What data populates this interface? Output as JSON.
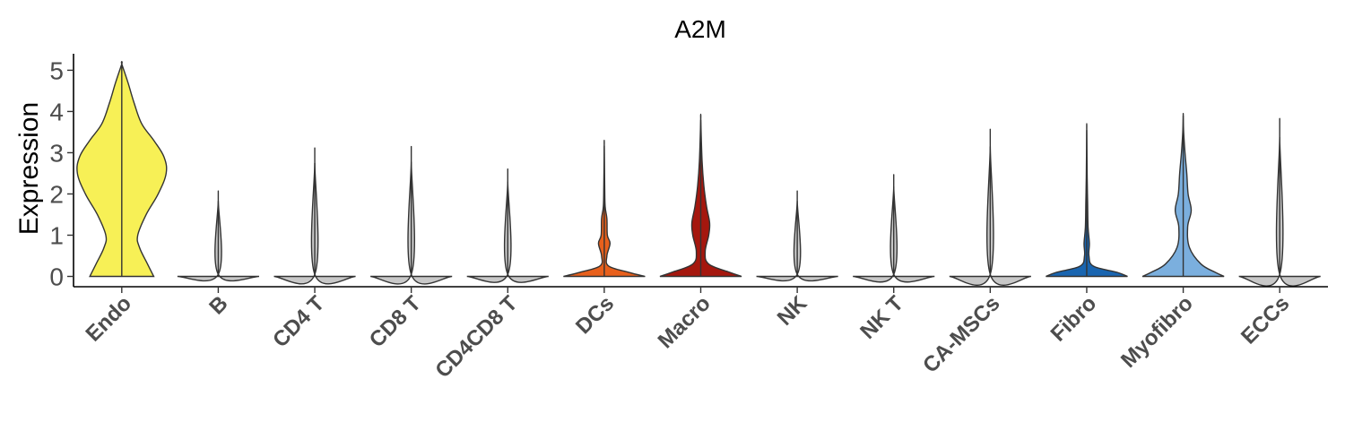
{
  "chart_data": {
    "type": "violin",
    "title": "A2M",
    "xlabel": "",
    "ylabel": "Expression",
    "ylim": [
      -0.25,
      5.4
    ],
    "yticks": [
      0,
      1,
      2,
      3,
      4,
      5
    ],
    "categories": [
      "Endo",
      "B",
      "CD4 T",
      "CD8 T",
      "CD4CD8 T",
      "DCs",
      "Macro",
      "NK",
      "NK T",
      "CA-MSCs",
      "Fibro",
      "Myofibro",
      "ECCs"
    ],
    "colors": [
      "#F7F056",
      "#C8C8C8",
      "#C8C8C8",
      "#C8C8C8",
      "#C8C8C8",
      "#E8601C",
      "#A5170E",
      "#C8C8C8",
      "#C8C8C8",
      "#C8C8C8",
      "#1965B0",
      "#7BAFDE",
      "#C8C8C8"
    ],
    "max_values": [
      5.15,
      1.83,
      2.75,
      2.78,
      2.3,
      3.17,
      3.8,
      1.83,
      2.18,
      3.15,
      3.55,
      3.9,
      3.38
    ],
    "density_profiles": [
      [
        [
          0,
          0.72
        ],
        [
          0.3,
          0.58
        ],
        [
          0.7,
          0.4
        ],
        [
          1.0,
          0.36
        ],
        [
          1.5,
          0.55
        ],
        [
          2.0,
          0.82
        ],
        [
          2.5,
          1.0
        ],
        [
          2.9,
          0.95
        ],
        [
          3.3,
          0.72
        ],
        [
          3.7,
          0.45
        ],
        [
          4.2,
          0.28
        ],
        [
          4.7,
          0.14
        ],
        [
          5.15,
          0.0
        ]
      ],
      [
        [
          0,
          0.92
        ],
        [
          0.05,
          0.0
        ],
        [
          1.83,
          0.0
        ]
      ],
      [
        [
          0,
          0.92
        ],
        [
          0.05,
          0.0
        ],
        [
          2.75,
          0.0
        ]
      ],
      [
        [
          0,
          0.92
        ],
        [
          0.05,
          0.0
        ],
        [
          2.78,
          0.0
        ]
      ],
      [
        [
          0,
          0.92
        ],
        [
          0.05,
          0.0
        ],
        [
          2.3,
          0.0
        ]
      ],
      [
        [
          0,
          0.92
        ],
        [
          0.1,
          0.55
        ],
        [
          0.25,
          0.1
        ],
        [
          0.5,
          0.06
        ],
        [
          0.8,
          0.13
        ],
        [
          1.0,
          0.07
        ],
        [
          1.4,
          0.06
        ],
        [
          1.7,
          0.02
        ],
        [
          2.2,
          0.01
        ],
        [
          3.17,
          0.0
        ]
      ],
      [
        [
          0,
          0.92
        ],
        [
          0.1,
          0.65
        ],
        [
          0.3,
          0.18
        ],
        [
          0.6,
          0.1
        ],
        [
          1.0,
          0.18
        ],
        [
          1.3,
          0.2
        ],
        [
          1.7,
          0.13
        ],
        [
          2.2,
          0.07
        ],
        [
          2.8,
          0.03
        ],
        [
          3.8,
          0.0
        ]
      ],
      [
        [
          0,
          0.92
        ],
        [
          0.05,
          0.0
        ],
        [
          1.83,
          0.0
        ]
      ],
      [
        [
          0,
          0.92
        ],
        [
          0.05,
          0.0
        ],
        [
          2.18,
          0.0
        ]
      ],
      [
        [
          0,
          0.92
        ],
        [
          0.05,
          0.0
        ],
        [
          3.15,
          0.0
        ]
      ],
      [
        [
          0,
          0.92
        ],
        [
          0.1,
          0.68
        ],
        [
          0.25,
          0.15
        ],
        [
          0.5,
          0.05
        ],
        [
          0.8,
          0.06
        ],
        [
          1.2,
          0.03
        ],
        [
          1.8,
          0.02
        ],
        [
          2.4,
          0.01
        ],
        [
          3.55,
          0.0
        ]
      ],
      [
        [
          0,
          0.92
        ],
        [
          0.1,
          0.72
        ],
        [
          0.3,
          0.4
        ],
        [
          0.7,
          0.14
        ],
        [
          1.2,
          0.1
        ],
        [
          1.6,
          0.18
        ],
        [
          2.0,
          0.11
        ],
        [
          2.5,
          0.08
        ],
        [
          3.0,
          0.04
        ],
        [
          3.5,
          0.01
        ],
        [
          3.9,
          0.0
        ]
      ],
      [
        [
          0,
          0.92
        ],
        [
          0.05,
          0.0
        ],
        [
          3.38,
          0.0
        ]
      ]
    ],
    "grid": false,
    "legend": "none"
  }
}
